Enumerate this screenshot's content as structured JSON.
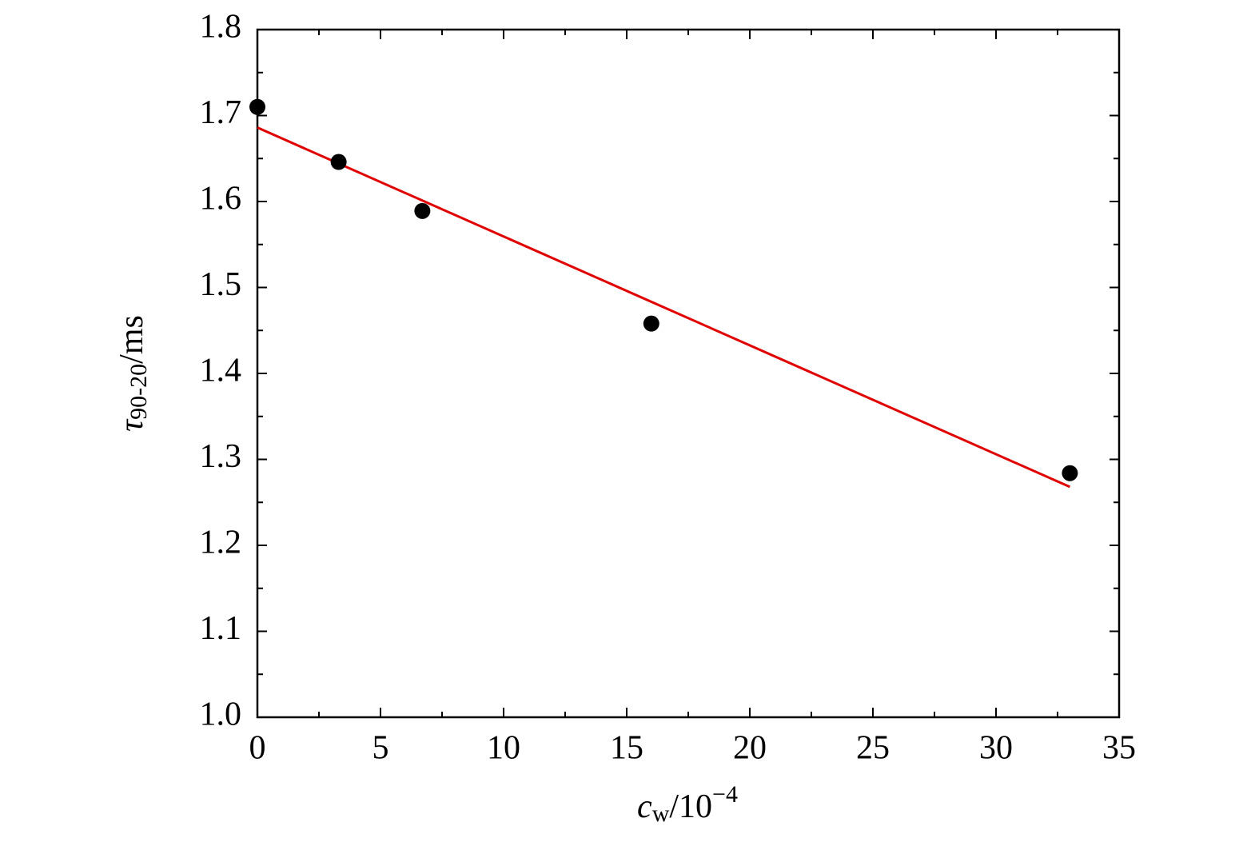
{
  "chart_data": {
    "type": "scatter",
    "x": [
      0,
      3.3,
      6.7,
      16,
      33
    ],
    "values": [
      1.71,
      1.646,
      1.589,
      1.458,
      1.284
    ],
    "color": "#000000",
    "fit": {
      "x": [
        0,
        33
      ],
      "values": [
        1.686,
        1.268
      ],
      "color": "#e00000"
    },
    "xlim": [
      0,
      35
    ],
    "xticks": [
      0,
      5,
      10,
      15,
      20,
      25,
      30,
      35
    ],
    "ylim": [
      1,
      1.8
    ],
    "yticks": [
      {
        "value": 1,
        "label": "1.0"
      },
      1.1,
      1.2,
      1.3,
      1.4,
      1.5,
      1.6,
      1.7,
      1.8
    ],
    "x_label": {
      "symbol": "c",
      "subscript": "w",
      "unit": "/10",
      "exponent": "−4"
    },
    "y_label": {
      "symbol": "τ",
      "subscript": "90-20",
      "unit": "/ms"
    }
  }
}
